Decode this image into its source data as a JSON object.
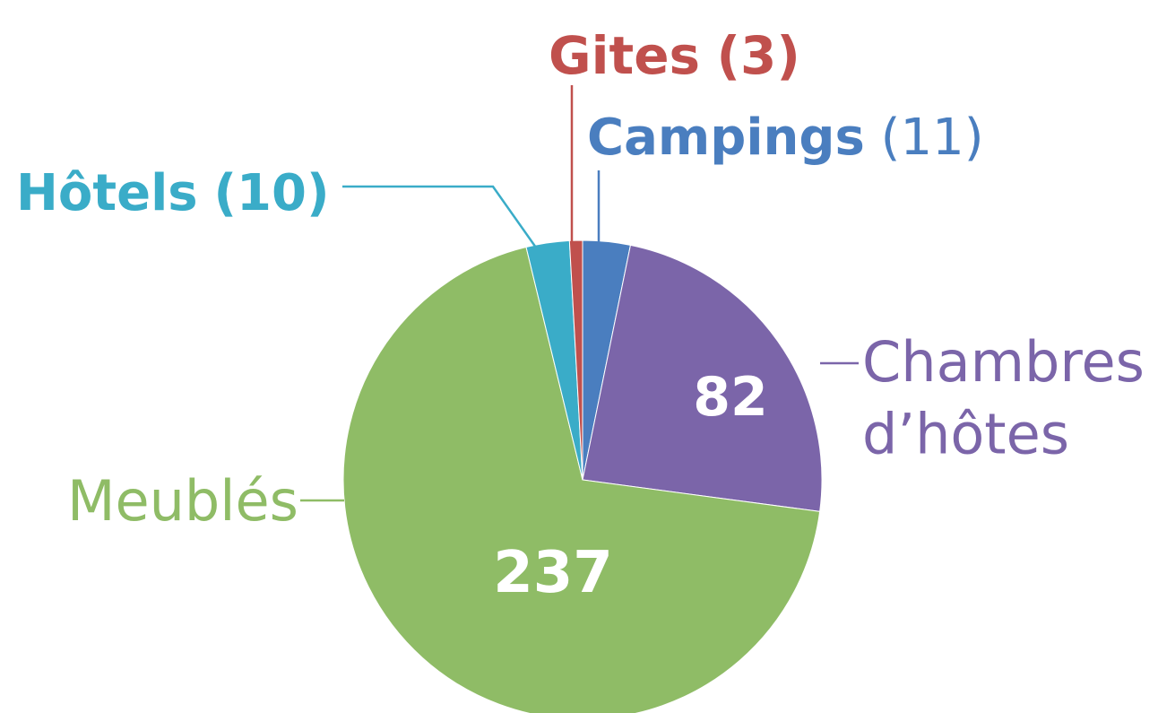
{
  "chart_data": {
    "type": "pie",
    "categories": [
      "Campings",
      "Chambres d’hôtes",
      "Meublés",
      "Hôtels",
      "Gites"
    ],
    "values": [
      11,
      82,
      237,
      10,
      3
    ],
    "value_labels": [
      "(11)",
      "82",
      "237",
      "(10)",
      "(3)"
    ],
    "colors": [
      "#4a7ebf",
      "#7b65a9",
      "#8fbc66",
      "#3aacc8",
      "#c0504d"
    ]
  }
}
